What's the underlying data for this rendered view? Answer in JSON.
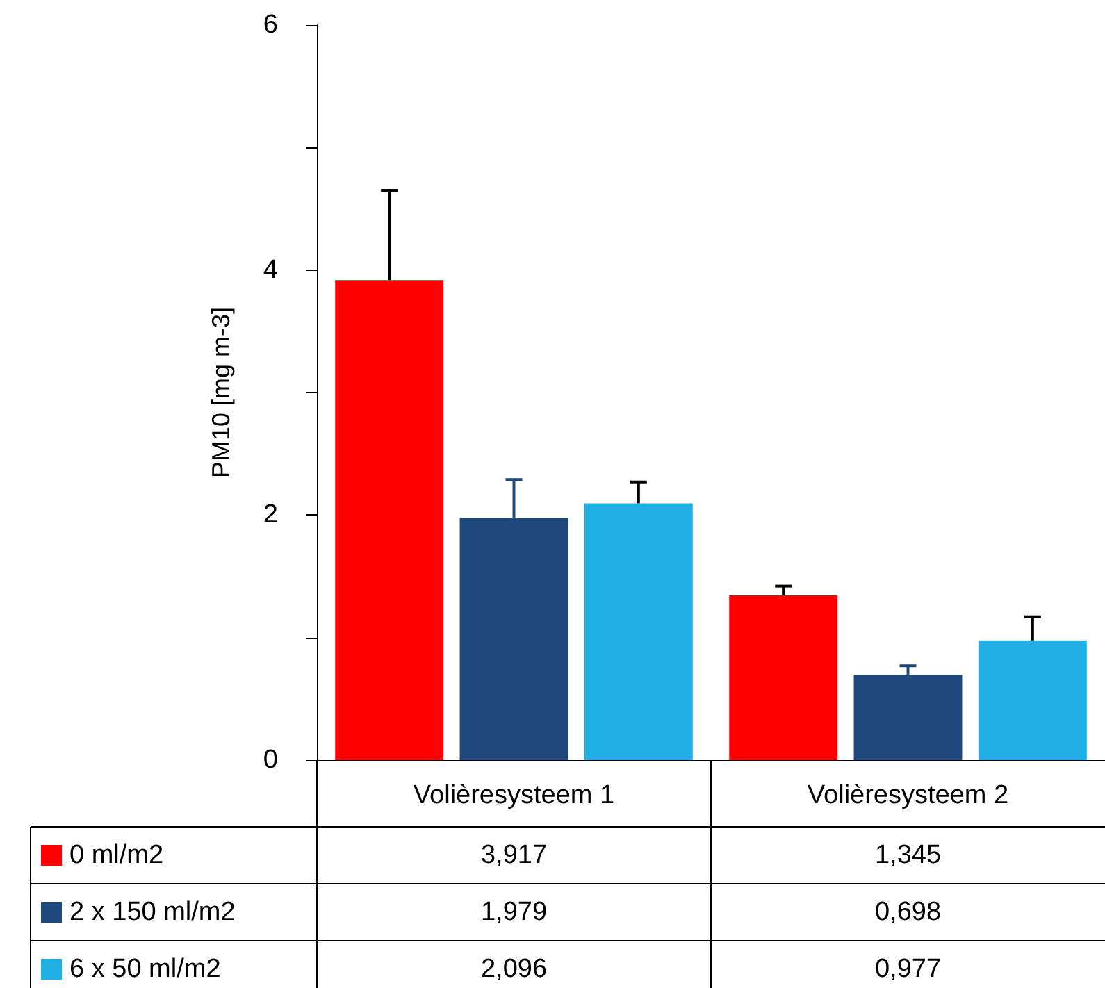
{
  "chart_data": {
    "type": "bar",
    "ylabel": "PM10 [mg m-3]",
    "categories": [
      "Volièresysteem 1",
      "Volièresysteem 2"
    ],
    "series": [
      {
        "name": "0 ml/m2",
        "color": "#ff0000",
        "values": [
          3.917,
          1.345
        ],
        "value_labels": [
          "3,917",
          "1,345"
        ],
        "errors": [
          [
            3.917,
            4.65
          ],
          [
            1.345,
            1.42
          ]
        ]
      },
      {
        "name": "2 x 150 ml/m2",
        "color": "#1f497d",
        "values": [
          1.979,
          0.698
        ],
        "value_labels": [
          "1,979",
          "0,698"
        ],
        "errors": [
          [
            1.979,
            2.29
          ],
          [
            0.698,
            0.77
          ]
        ]
      },
      {
        "name": "6 x 50 ml/m2",
        "color": "#1fb1e6",
        "values": [
          2.096,
          0.977
        ],
        "value_labels": [
          "2,096",
          "0,977"
        ],
        "errors": [
          [
            2.096,
            2.27
          ],
          [
            0.977,
            1.17
          ]
        ]
      }
    ],
    "ylim": [
      0,
      6
    ],
    "yticks": [
      0,
      {
        "value": 1,
        "label": null
      },
      2,
      {
        "value": 3,
        "label": null
      },
      4,
      {
        "value": 5,
        "label": null
      },
      6
    ],
    "grid": false,
    "legend": "bottom left"
  }
}
